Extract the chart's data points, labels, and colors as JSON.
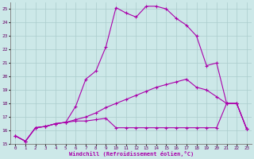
{
  "xlabel": "Windchill (Refroidissement éolien,°C)",
  "x_ticks": [
    0,
    1,
    2,
    3,
    4,
    5,
    6,
    7,
    8,
    9,
    10,
    11,
    12,
    13,
    14,
    15,
    16,
    17,
    18,
    19,
    20,
    21,
    22,
    23
  ],
  "ylim": [
    15,
    25.5
  ],
  "xlim": [
    -0.5,
    23.5
  ],
  "yticks": [
    15,
    16,
    17,
    18,
    19,
    20,
    21,
    22,
    23,
    24,
    25
  ],
  "background_color": "#cce8e8",
  "grid_color": "#aacccc",
  "line_color": "#aa00aa",
  "line1_y": [
    15.6,
    15.2,
    16.2,
    16.3,
    16.5,
    16.6,
    17.8,
    19.8,
    20.4,
    22.2,
    25.1,
    24.7,
    24.4,
    25.2,
    25.2,
    25.0,
    24.3,
    23.8,
    23.0,
    20.8,
    21.0,
    18.0,
    18.0,
    16.1
  ],
  "line2_y": [
    15.6,
    15.2,
    16.2,
    16.3,
    16.5,
    16.6,
    16.8,
    17.0,
    17.3,
    17.7,
    18.0,
    18.3,
    18.6,
    18.9,
    19.2,
    19.4,
    19.6,
    19.8,
    19.2,
    19.0,
    18.5,
    18.0,
    18.0,
    16.1
  ],
  "line3_y": [
    15.6,
    15.2,
    16.2,
    16.3,
    16.5,
    16.6,
    16.7,
    16.7,
    16.8,
    16.9,
    16.2,
    16.2,
    16.2,
    16.2,
    16.2,
    16.2,
    16.2,
    16.2,
    16.2,
    16.2,
    16.2,
    18.0,
    18.0,
    16.1
  ]
}
